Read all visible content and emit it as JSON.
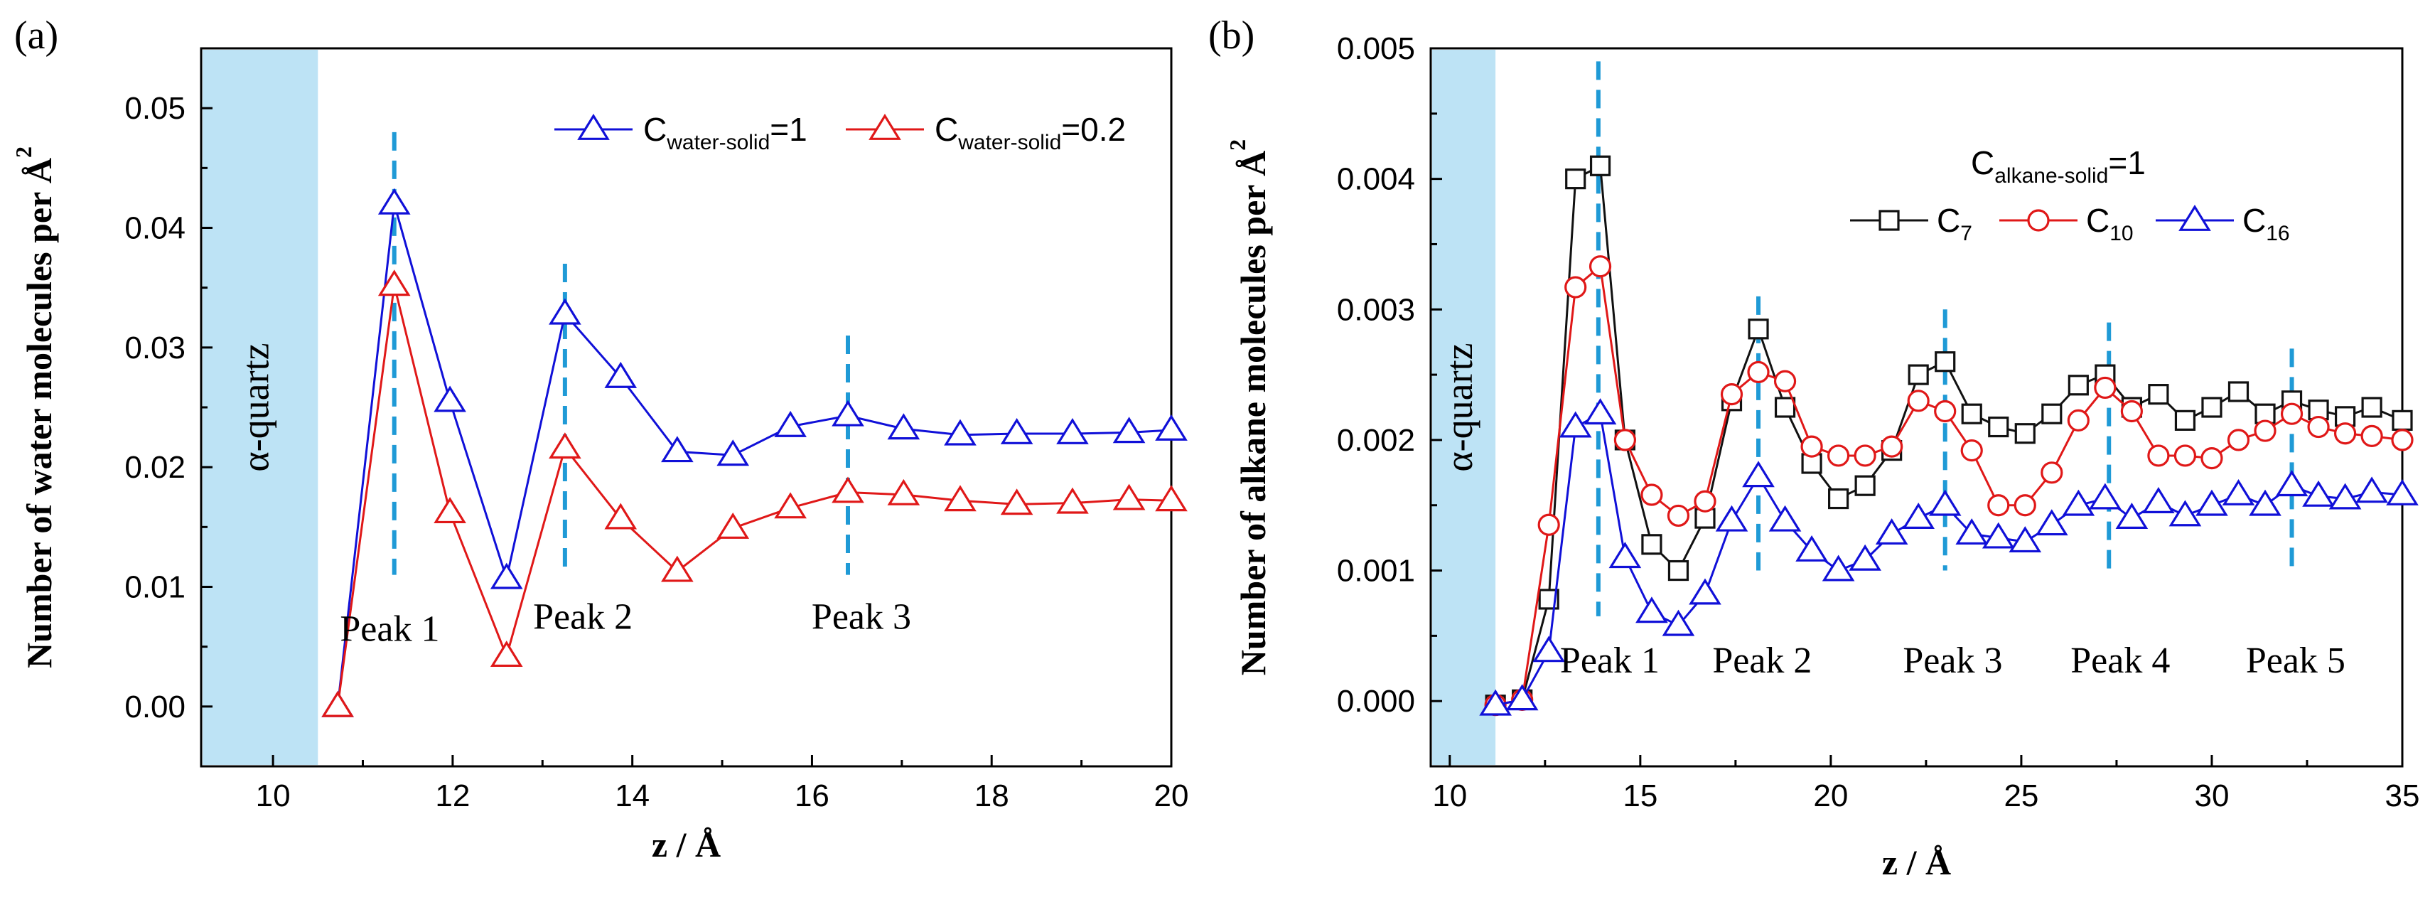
{
  "colors": {
    "blue": "#1010d8",
    "red": "#e01818",
    "black": "#111111",
    "dash": "#1f9ad6",
    "quartz": "#bde3f5"
  },
  "chart_data": [
    {
      "panel": "(a)",
      "type": "line",
      "xlabel": "z / Å",
      "ylabel": "Number of water molecules per Å",
      "ylabel_sup": "2",
      "xlim": [
        9.2,
        20
      ],
      "ylim": [
        -0.005,
        0.055
      ],
      "xticks": [
        10,
        12,
        14,
        16,
        18,
        20
      ],
      "yticks": [
        0.0,
        0.01,
        0.02,
        0.03,
        0.04,
        0.05
      ],
      "ytick_labels": [
        "0.00",
        "0.01",
        "0.02",
        "0.03",
        "0.04",
        "0.05"
      ],
      "grid": false,
      "legend_position": "top-right",
      "region": {
        "label": "α-quartz",
        "x_range": [
          9.2,
          10.5
        ]
      },
      "peak_lines": [
        {
          "x": 11.35,
          "y_range": [
            0.011,
            0.048
          ]
        },
        {
          "x": 13.25,
          "y_range": [
            0.011,
            0.037
          ]
        },
        {
          "x": 16.4,
          "y_range": [
            0.011,
            0.031
          ]
        }
      ],
      "peak_labels": [
        {
          "text": "Peak 1",
          "x": 11.3,
          "y": 0.0055
        },
        {
          "text": "Peak 2",
          "x": 13.45,
          "y": 0.0065
        },
        {
          "text": "Peak 3",
          "x": 16.55,
          "y": 0.0065
        }
      ],
      "series": [
        {
          "name": "C",
          "name_sub": "water-solid",
          "name_suffix": "=1",
          "color": "blue",
          "marker": "triangle",
          "x": [
            10.72,
            11.35,
            11.97,
            12.6,
            13.25,
            13.87,
            14.5,
            15.12,
            15.76,
            16.4,
            17.02,
            17.65,
            18.28,
            18.9,
            19.53,
            20.0
          ],
          "y": [
            0.0,
            0.042,
            0.0255,
            0.0107,
            0.0328,
            0.0275,
            0.0213,
            0.021,
            0.0234,
            0.0243,
            0.0232,
            0.0227,
            0.0228,
            0.0228,
            0.0229,
            0.0231
          ]
        },
        {
          "name": "C",
          "name_sub": "water-solid",
          "name_suffix": "=0.2",
          "color": "red",
          "marker": "triangle",
          "x": [
            10.72,
            11.35,
            11.97,
            12.6,
            13.25,
            13.87,
            14.5,
            15.12,
            15.76,
            16.4,
            17.02,
            17.65,
            18.28,
            18.9,
            19.53,
            20.0
          ],
          "y": [
            0.0,
            0.0352,
            0.0162,
            0.0042,
            0.0216,
            0.0157,
            0.0113,
            0.0149,
            0.0166,
            0.0179,
            0.0177,
            0.0172,
            0.0169,
            0.017,
            0.0173,
            0.0172
          ]
        }
      ]
    },
    {
      "panel": "(b)",
      "type": "line",
      "xlabel": "z / Å",
      "ylabel": "Number of alkane molecules per Å",
      "ylabel_sup": "2",
      "xlim": [
        9.5,
        35
      ],
      "ylim": [
        -0.0005,
        0.005
      ],
      "xticks": [
        10,
        15,
        20,
        25,
        30,
        35
      ],
      "yticks": [
        0.0,
        0.001,
        0.002,
        0.003,
        0.004,
        0.005
      ],
      "ytick_labels": [
        "0.000",
        "0.001",
        "0.002",
        "0.003",
        "0.004",
        "0.005"
      ],
      "grid": false,
      "legend_position": "top-right",
      "legend_title": {
        "main": "C",
        "sub": "alkane-solid",
        "suffix": "=1"
      },
      "region": {
        "label": "α-quartz",
        "x_range": [
          9.5,
          11.2
        ]
      },
      "peak_lines": [
        {
          "x": 13.9,
          "y_range": [
            0.00065,
            0.0049
          ]
        },
        {
          "x": 18.1,
          "y_range": [
            0.001,
            0.0031
          ]
        },
        {
          "x": 23.0,
          "y_range": [
            0.001,
            0.003
          ]
        },
        {
          "x": 27.3,
          "y_range": [
            0.001,
            0.0029
          ]
        },
        {
          "x": 32.1,
          "y_range": [
            0.001,
            0.0027
          ]
        }
      ],
      "peak_labels": [
        {
          "text": "Peak 1",
          "x": 14.2,
          "y": 0.00022
        },
        {
          "text": "Peak 2",
          "x": 18.2,
          "y": 0.00022
        },
        {
          "text": "Peak 3",
          "x": 23.2,
          "y": 0.00022
        },
        {
          "text": "Peak 4",
          "x": 27.6,
          "y": 0.00022
        },
        {
          "text": "Peak 5",
          "x": 32.2,
          "y": 0.00022
        }
      ],
      "series": [
        {
          "name": "C",
          "name_sub": "7",
          "color": "black",
          "marker": "square",
          "x": [
            11.2,
            11.9,
            12.6,
            13.3,
            13.95,
            14.6,
            15.3,
            16.0,
            16.7,
            17.4,
            18.1,
            18.8,
            19.5,
            20.2,
            20.9,
            21.6,
            22.3,
            23.0,
            23.7,
            24.4,
            25.1,
            25.8,
            26.5,
            27.2,
            27.9,
            28.6,
            29.3,
            30.0,
            30.7,
            31.4,
            32.1,
            32.8,
            33.5,
            34.2,
            35.0
          ],
          "y": [
            -3e-05,
            1e-05,
            0.00078,
            0.004,
            0.0041,
            0.002,
            0.0012,
            0.001,
            0.0014,
            0.0023,
            0.00285,
            0.00225,
            0.00182,
            0.00155,
            0.00165,
            0.00192,
            0.0025,
            0.0026,
            0.0022,
            0.0021,
            0.00205,
            0.0022,
            0.00242,
            0.0025,
            0.00225,
            0.00235,
            0.00215,
            0.00225,
            0.00237,
            0.0022,
            0.0023,
            0.00223,
            0.00218,
            0.00225,
            0.00215
          ]
        },
        {
          "name": "C",
          "name_sub": "10",
          "color": "red",
          "marker": "circle",
          "x": [
            11.2,
            11.9,
            12.6,
            13.3,
            13.95,
            14.6,
            15.3,
            16.0,
            16.7,
            17.4,
            18.1,
            18.8,
            19.5,
            20.2,
            20.9,
            21.6,
            22.3,
            23.0,
            23.7,
            24.4,
            25.1,
            25.8,
            26.5,
            27.2,
            27.9,
            28.6,
            29.3,
            30.0,
            30.7,
            31.4,
            32.1,
            32.8,
            33.5,
            34.2,
            35.0
          ],
          "y": [
            -3e-05,
            1e-05,
            0.00135,
            0.00317,
            0.00333,
            0.002,
            0.00158,
            0.00142,
            0.00153,
            0.00235,
            0.00252,
            0.00245,
            0.00195,
            0.00188,
            0.00188,
            0.00195,
            0.0023,
            0.00222,
            0.00192,
            0.0015,
            0.0015,
            0.00175,
            0.00215,
            0.0024,
            0.00222,
            0.00188,
            0.00188,
            0.00186,
            0.002,
            0.00207,
            0.0022,
            0.0021,
            0.00205,
            0.00203,
            0.002
          ]
        },
        {
          "name": "C",
          "name_sub": "16",
          "color": "blue",
          "marker": "triangle",
          "x": [
            11.2,
            11.9,
            12.6,
            13.3,
            13.95,
            14.6,
            15.3,
            16.0,
            16.7,
            17.4,
            18.1,
            18.8,
            19.5,
            20.2,
            20.9,
            21.6,
            22.3,
            23.0,
            23.7,
            24.4,
            25.1,
            25.8,
            26.5,
            27.2,
            27.9,
            28.6,
            29.3,
            30.0,
            30.7,
            31.4,
            32.1,
            32.8,
            33.5,
            34.2,
            35.0
          ],
          "y": [
            -3e-05,
            1e-05,
            0.00038,
            0.0021,
            0.0022,
            0.0011,
            0.00068,
            0.00058,
            0.00082,
            0.00138,
            0.00172,
            0.00138,
            0.00115,
            0.001,
            0.00108,
            0.00128,
            0.0014,
            0.0015,
            0.00128,
            0.00125,
            0.00122,
            0.00135,
            0.0015,
            0.00155,
            0.0014,
            0.00152,
            0.00142,
            0.0015,
            0.00158,
            0.0015,
            0.00165,
            0.00157,
            0.00155,
            0.0016,
            0.00158
          ]
        }
      ]
    }
  ]
}
